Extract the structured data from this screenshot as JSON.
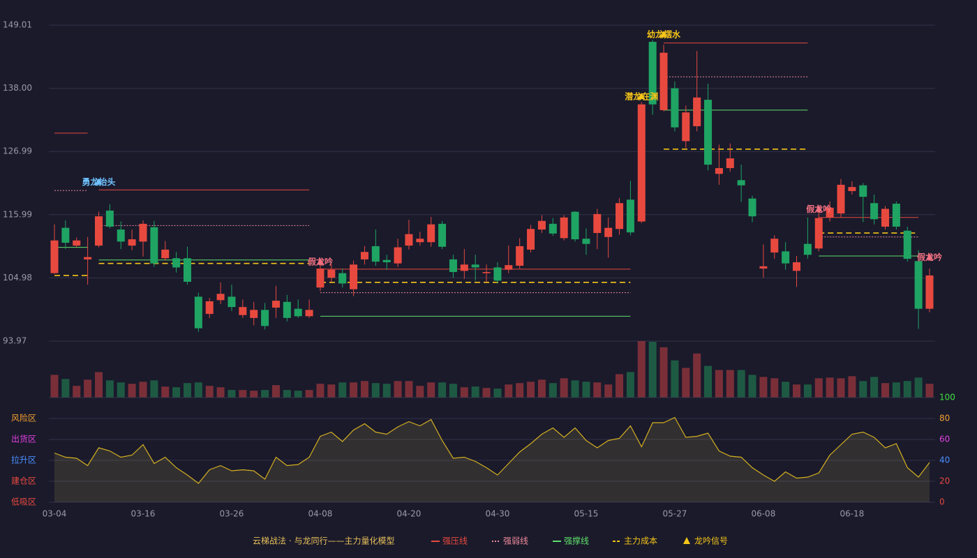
{
  "chart_data": {
    "type": "candlestick",
    "categories": [
      "03-04",
      null,
      null,
      null,
      null,
      null,
      null,
      null,
      "03-16",
      null,
      null,
      null,
      null,
      null,
      null,
      null,
      "03-26",
      null,
      null,
      null,
      null,
      null,
      null,
      null,
      "04-08",
      null,
      null,
      null,
      null,
      null,
      null,
      null,
      "04-20",
      null,
      null,
      null,
      null,
      null,
      null,
      null,
      "04-30",
      null,
      null,
      null,
      null,
      null,
      null,
      null,
      "05-15",
      null,
      null,
      null,
      null,
      null,
      null,
      null,
      "05-27",
      null,
      null,
      null,
      null,
      null,
      null,
      null,
      "06-08",
      null,
      null,
      null,
      null,
      null,
      null,
      null,
      "06-18",
      null,
      null,
      null,
      null,
      null,
      null,
      null
    ],
    "open": [
      105.8,
      113.7,
      110.6,
      108.2,
      110.6,
      116.7,
      113.4,
      110.6,
      111.3,
      113.8,
      108.4,
      108.4,
      108.4,
      101.7,
      98.7,
      101.1,
      101.7,
      98.5,
      98.0,
      99.4,
      99.8,
      100.8,
      99.6,
      98.3,
      103.3,
      105.0,
      105.8,
      103.0,
      108.2,
      110.5,
      108.1,
      107.5,
      110.6,
      111.2,
      111.2,
      114.4,
      108.2,
      106.2,
      107.3,
      105.8,
      106.8,
      106.4,
      107.1,
      109.9,
      113.4,
      114.4,
      111.9,
      116.5,
      111.8,
      112.8,
      112.1,
      113.5,
      118.6,
      114.8,
      146.1,
      134.2,
      138.0,
      128.8,
      131.4,
      136.0,
      123.1,
      124.1,
      122.0,
      118.8,
      106.6,
      109.4,
      109.6,
      106.2,
      110.9,
      110.1,
      115.5,
      116.2,
      120.1,
      121.1,
      118.0,
      113.9,
      117.9,
      113.2,
      107.9,
      99.6
    ],
    "high": [
      114.3,
      115.0,
      112.0,
      112.1,
      116.5,
      117.8,
      114.8,
      113.4,
      115.0,
      114.9,
      111.4,
      109.5,
      110.4,
      102.4,
      101.5,
      104.2,
      103.8,
      101.2,
      100.8,
      100.6,
      103.6,
      102.0,
      101.2,
      101.2,
      108.0,
      107.4,
      106.6,
      108.0,
      110.5,
      113.4,
      109.0,
      111.8,
      115.1,
      113.0,
      115.6,
      114.9,
      109.0,
      110.0,
      109.0,
      107.3,
      107.7,
      110.6,
      111.9,
      114.2,
      115.9,
      115.4,
      115.9,
      116.6,
      113.6,
      117.0,
      115.5,
      118.9,
      121.9,
      135.6,
      146.4,
      145.6,
      139.2,
      135.0,
      144.5,
      138.8,
      128.2,
      128.4,
      124.7,
      119.3,
      110.8,
      112.4,
      111.2,
      108.8,
      115.5,
      116.6,
      118.3,
      122.2,
      121.8,
      121.5,
      119.5,
      117.5,
      118.3,
      113.9,
      109.8,
      106.6
    ],
    "low": [
      105.7,
      110.0,
      110.3,
      103.8,
      110.3,
      113.6,
      110.0,
      109.8,
      108.7,
      106.9,
      108.0,
      105.9,
      103.8,
      95.6,
      98.0,
      100.4,
      99.2,
      98.0,
      96.7,
      96.0,
      98.0,
      97.4,
      98.0,
      98.0,
      102.7,
      104.3,
      103.3,
      101.8,
      107.3,
      107.1,
      106.4,
      106.9,
      109.9,
      110.6,
      110.4,
      110.0,
      105.0,
      104.8,
      104.5,
      104.3,
      104.0,
      105.8,
      106.6,
      109.4,
      112.8,
      112.3,
      111.5,
      111.3,
      109.0,
      110.0,
      108.5,
      112.5,
      112.4,
      114.5,
      133.4,
      134.0,
      130.5,
      127.6,
      130.5,
      123.7,
      121.2,
      123.5,
      118.2,
      114.7,
      105.0,
      108.3,
      106.4,
      103.4,
      108.3,
      109.6,
      114.8,
      115.5,
      119.5,
      114.7,
      114.3,
      113.4,
      113.4,
      107.8,
      96.1,
      99.0
    ],
    "close": [
      111.5,
      111.1,
      111.5,
      108.6,
      115.7,
      113.9,
      111.3,
      111.7,
      114.4,
      107.5,
      109.9,
      106.8,
      104.3,
      96.2,
      100.9,
      102.2,
      99.9,
      99.9,
      99.4,
      96.6,
      101.0,
      98.0,
      98.3,
      99.4,
      106.6,
      106.4,
      104.0,
      107.3,
      109.5,
      107.8,
      107.7,
      110.3,
      112.6,
      111.8,
      114.3,
      110.4,
      106.0,
      107.3,
      106.8,
      106.0,
      104.5,
      107.2,
      110.5,
      113.5,
      114.9,
      112.7,
      115.5,
      111.7,
      110.9,
      116.1,
      113.7,
      118.0,
      112.9,
      135.2,
      135.2,
      144.2,
      131.2,
      133.8,
      136.4,
      124.7,
      124.1,
      125.8,
      121.1,
      115.7,
      107.0,
      111.8,
      107.5,
      107.7,
      109.0,
      115.4,
      117.2,
      121.2,
      120.8,
      119.1,
      115.2,
      117.0,
      113.9,
      108.3,
      99.6,
      105.4
    ],
    "volume": [
      33,
      27,
      17,
      26,
      37,
      25,
      22,
      20,
      23,
      25,
      16,
      15,
      21,
      22,
      17,
      15,
      11,
      11,
      10,
      11,
      18,
      11,
      10,
      11,
      20,
      19,
      22,
      22,
      24,
      21,
      20,
      24,
      24,
      17,
      22,
      22,
      20,
      15,
      16,
      14,
      13,
      19,
      21,
      23,
      26,
      21,
      28,
      25,
      23,
      22,
      19,
      34,
      37,
      82,
      81,
      73,
      54,
      43,
      64,
      46,
      40,
      40,
      40,
      33,
      30,
      28,
      23,
      19,
      19,
      28,
      29,
      28,
      31,
      24,
      30,
      21,
      22,
      24,
      29,
      20
    ],
    "up_color": "#e8493f",
    "down_color": "#1fa463",
    "ylim": [
      93.97,
      149.01
    ],
    "yticks": [
      93.97,
      104.98,
      115.99,
      126.99,
      {
        "value": 138,
        "label": "138.00"
      },
      149.01
    ],
    "grid": true,
    "levels": [
      {
        "name": "强压线",
        "color": "#e8493f",
        "style": "solid",
        "segments": [
          {
            "from": 0,
            "to": 3,
            "value": 130.2
          },
          {
            "from": 4,
            "to": 23,
            "value": 120.3
          },
          {
            "from": 24,
            "to": 52,
            "value": 106.5
          },
          {
            "from": 55,
            "to": 68,
            "value": 145.9
          },
          {
            "from": 69,
            "to": 78,
            "value": 115.5
          }
        ]
      },
      {
        "name": "强弱线",
        "color": "#f08a9a",
        "style": "dotted",
        "segments": [
          {
            "from": 0,
            "to": 3,
            "value": 120.2
          },
          {
            "from": 4,
            "to": 23,
            "value": 114.1
          },
          {
            "from": 24,
            "to": 52,
            "value": 102.4
          },
          {
            "from": 55,
            "to": 68,
            "value": 140.0
          },
          {
            "from": 69,
            "to": 78,
            "value": 112.1
          }
        ]
      },
      {
        "name": "强撑线",
        "color": "#5fe06a",
        "style": "solid",
        "segments": [
          {
            "from": 0,
            "to": 3,
            "value": 110.3
          },
          {
            "from": 4,
            "to": 23,
            "value": 108.1
          },
          {
            "from": 24,
            "to": 52,
            "value": 98.3
          },
          {
            "from": 55,
            "to": 68,
            "value": 134.2
          },
          {
            "from": 69,
            "to": 78,
            "value": 108.8
          }
        ]
      },
      {
        "name": "主力成本",
        "color": "#f5c518",
        "style": "dashed",
        "segments": [
          {
            "from": 0,
            "to": 3,
            "value": 105.4
          },
          {
            "from": 4,
            "to": 23,
            "value": 107.5
          },
          {
            "from": 24,
            "to": 52,
            "value": 104.2
          },
          {
            "from": 55,
            "to": 68,
            "value": 127.4
          },
          {
            "from": 69,
            "to": 78,
            "value": 112.8
          }
        ]
      }
    ],
    "signals": {
      "name": "龙吟信号",
      "color": "#f5c518",
      "items": [
        {
          "index": 4,
          "label": "勇龙抬头",
          "price": 121.6,
          "color": "#6fc3ff"
        },
        {
          "index": 24,
          "label": "假龙吟",
          "price": 107.7,
          "color": "#f07080"
        },
        {
          "index": 53,
          "label": "潜龙在渊",
          "price": 136.5,
          "color": "#f5c518"
        },
        {
          "index": 55,
          "label": "幼龙摆水",
          "price": 147.3,
          "color": "#f5c518"
        },
        {
          "index": 69,
          "label": "假龙吟",
          "price": 116.9,
          "color": "#f07080"
        },
        {
          "index": 79,
          "label": "假龙吟",
          "price": 108.5,
          "color": "#f07080"
        }
      ]
    },
    "oscillator": {
      "values": [
        47,
        43,
        42,
        35,
        52,
        49,
        43,
        45,
        55,
        37,
        43,
        33,
        26,
        18,
        31,
        35,
        30,
        31,
        30,
        22,
        43,
        35,
        36,
        43,
        63,
        67,
        58,
        69,
        75,
        67,
        65,
        72,
        77,
        73,
        79,
        59,
        42,
        43,
        39,
        33,
        26,
        37,
        48,
        56,
        65,
        71,
        62,
        71,
        59,
        52,
        59,
        61,
        73,
        53,
        76,
        76,
        81,
        62,
        63,
        66,
        49,
        44,
        43,
        33,
        26,
        20,
        29,
        23,
        24,
        28,
        45,
        55,
        65,
        67,
        62,
        52,
        56,
        33,
        24,
        38
      ],
      "color": "#d4b020",
      "ylim": [
        0,
        100
      ],
      "yticks": [
        0,
        20,
        40,
        60,
        80,
        100
      ],
      "tick_colors": [
        "#e8493f",
        "#e8493f",
        "#4a90ff",
        "#e040e0",
        "#f0a030",
        "#40e040"
      ],
      "zones": [
        {
          "label": "风险区",
          "value": 80,
          "color": "#f0a030"
        },
        {
          "label": "出货区",
          "value": 60,
          "color": "#e040e0"
        },
        {
          "label": "拉升区",
          "value": 40,
          "color": "#4a90ff"
        },
        {
          "label": "建仓区",
          "value": 20,
          "color": "#e8493f"
        },
        {
          "label": "低吸区",
          "value": 0,
          "color": "#e8493f"
        }
      ]
    },
    "legend_title": "云梯战法 · 与龙同行——主力量化模型"
  }
}
